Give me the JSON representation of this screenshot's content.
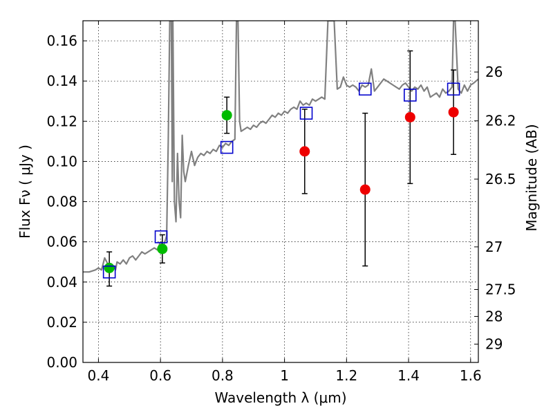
{
  "chart_data": {
    "type": "scatter",
    "title": "",
    "xlabel": "Wavelength  λ (μm)",
    "ylabel": "Flux  Fν  ( μJy )",
    "y2label": "Magnitude (AB)",
    "xlim": [
      0.35,
      1.625
    ],
    "ylim": [
      0.0,
      0.17
    ],
    "grid": true,
    "x_ticks": [
      0.4,
      0.6,
      0.8,
      1.0,
      1.2,
      1.4,
      1.6
    ],
    "x_tick_labels": [
      "0.4",
      "0.6",
      "0.8",
      "1",
      "1.2",
      "1.4",
      "1.6"
    ],
    "y_ticks": [
      0.0,
      0.02,
      0.04,
      0.06,
      0.08,
      0.1,
      0.12,
      0.14,
      0.16
    ],
    "y_tick_labels": [
      "0.00",
      "0.02",
      "0.04",
      "0.06",
      "0.08",
      "0.10",
      "0.12",
      "0.14",
      "0.16"
    ],
    "y2_ticks": [
      {
        "label": "26",
        "flux": 0.1445
      },
      {
        "label": "26.2",
        "flux": 0.1202
      },
      {
        "label": "26.5",
        "flux": 0.0912
      },
      {
        "label": "27",
        "flux": 0.0575
      },
      {
        "label": "27.5",
        "flux": 0.0363
      },
      {
        "label": "28",
        "flux": 0.0229
      },
      {
        "label": "29",
        "flux": 0.0091
      }
    ],
    "model_spectrum": {
      "color": "#808080",
      "x": [
        0.35,
        0.37,
        0.39,
        0.4,
        0.41,
        0.42,
        0.43,
        0.44,
        0.45,
        0.455,
        0.46,
        0.47,
        0.48,
        0.49,
        0.5,
        0.51,
        0.52,
        0.53,
        0.54,
        0.55,
        0.56,
        0.57,
        0.58,
        0.59,
        0.6,
        0.61,
        0.62,
        0.625,
        0.63,
        0.635,
        0.638,
        0.64,
        0.645,
        0.65,
        0.655,
        0.66,
        0.665,
        0.67,
        0.675,
        0.68,
        0.69,
        0.7,
        0.71,
        0.72,
        0.73,
        0.74,
        0.75,
        0.76,
        0.77,
        0.78,
        0.79,
        0.8,
        0.81,
        0.82,
        0.83,
        0.84,
        0.845,
        0.85,
        0.855,
        0.86,
        0.87,
        0.88,
        0.89,
        0.9,
        0.91,
        0.92,
        0.93,
        0.94,
        0.95,
        0.96,
        0.97,
        0.98,
        0.99,
        1.0,
        1.01,
        1.02,
        1.03,
        1.04,
        1.05,
        1.06,
        1.07,
        1.08,
        1.09,
        1.1,
        1.11,
        1.12,
        1.13,
        1.14,
        1.15,
        1.16,
        1.17,
        1.18,
        1.19,
        1.2,
        1.21,
        1.22,
        1.23,
        1.24,
        1.25,
        1.26,
        1.27,
        1.28,
        1.29,
        1.3,
        1.31,
        1.32,
        1.33,
        1.34,
        1.35,
        1.36,
        1.37,
        1.38,
        1.39,
        1.4,
        1.41,
        1.42,
        1.43,
        1.44,
        1.45,
        1.46,
        1.47,
        1.48,
        1.49,
        1.5,
        1.51,
        1.52,
        1.53,
        1.54,
        1.545,
        1.55,
        1.56,
        1.57,
        1.58,
        1.59,
        1.6,
        1.61,
        1.625
      ],
      "y": [
        0.045,
        0.045,
        0.046,
        0.047,
        0.046,
        0.052,
        0.049,
        0.047,
        0.048,
        0.046,
        0.05,
        0.049,
        0.051,
        0.049,
        0.052,
        0.053,
        0.051,
        0.053,
        0.055,
        0.054,
        0.055,
        0.056,
        0.057,
        0.056,
        0.06,
        0.058,
        0.063,
        0.11,
        0.17,
        0.17,
        0.09,
        0.17,
        0.08,
        0.07,
        0.104,
        0.08,
        0.072,
        0.113,
        0.095,
        0.09,
        0.098,
        0.105,
        0.098,
        0.102,
        0.104,
        0.103,
        0.105,
        0.104,
        0.106,
        0.105,
        0.108,
        0.107,
        0.109,
        0.108,
        0.11,
        0.111,
        0.17,
        0.17,
        0.12,
        0.115,
        0.116,
        0.117,
        0.116,
        0.118,
        0.117,
        0.119,
        0.12,
        0.119,
        0.121,
        0.123,
        0.122,
        0.124,
        0.123,
        0.125,
        0.124,
        0.126,
        0.127,
        0.126,
        0.13,
        0.128,
        0.129,
        0.128,
        0.131,
        0.13,
        0.131,
        0.132,
        0.131,
        0.17,
        0.17,
        0.17,
        0.136,
        0.137,
        0.142,
        0.138,
        0.137,
        0.138,
        0.137,
        0.135,
        0.138,
        0.137,
        0.138,
        0.146,
        0.135,
        0.137,
        0.139,
        0.141,
        0.14,
        0.139,
        0.138,
        0.137,
        0.136,
        0.138,
        0.139,
        0.137,
        0.135,
        0.137,
        0.136,
        0.138,
        0.135,
        0.137,
        0.132,
        0.133,
        0.134,
        0.132,
        0.136,
        0.134,
        0.135,
        0.137,
        0.17,
        0.17,
        0.136,
        0.134,
        0.138,
        0.135,
        0.138,
        0.139,
        0.141
      ]
    },
    "series": [
      {
        "name": "",
        "marker": "circle",
        "color": "#00bb00",
        "points": [
          {
            "x": 0.435,
            "y": 0.047,
            "yerr_low": 0.009,
            "yerr_high": 0.008
          },
          {
            "x": 0.606,
            "y": 0.0565,
            "yerr_low": 0.007,
            "yerr_high": 0.007
          },
          {
            "x": 0.814,
            "y": 0.123,
            "yerr_low": 0.009,
            "yerr_high": 0.009
          }
        ]
      },
      {
        "name": "",
        "marker": "circle",
        "color": "#ee0000",
        "points": [
          {
            "x": 1.065,
            "y": 0.105,
            "yerr_low": 0.021,
            "yerr_high": 0.021
          },
          {
            "x": 1.26,
            "y": 0.086,
            "yerr_low": 0.038,
            "yerr_high": 0.038
          },
          {
            "x": 1.405,
            "y": 0.122,
            "yerr_low": 0.033,
            "yerr_high": 0.033
          },
          {
            "x": 1.545,
            "y": 0.1245,
            "yerr_low": 0.021,
            "yerr_high": 0.021
          }
        ]
      },
      {
        "name": "",
        "marker": "open-square",
        "color": "#0000cc",
        "points": [
          {
            "x": 0.435,
            "y": 0.045
          },
          {
            "x": 0.602,
            "y": 0.0625
          },
          {
            "x": 0.814,
            "y": 0.107
          },
          {
            "x": 1.07,
            "y": 0.124
          },
          {
            "x": 1.26,
            "y": 0.136
          },
          {
            "x": 1.405,
            "y": 0.133
          },
          {
            "x": 1.545,
            "y": 0.136
          }
        ]
      }
    ]
  }
}
